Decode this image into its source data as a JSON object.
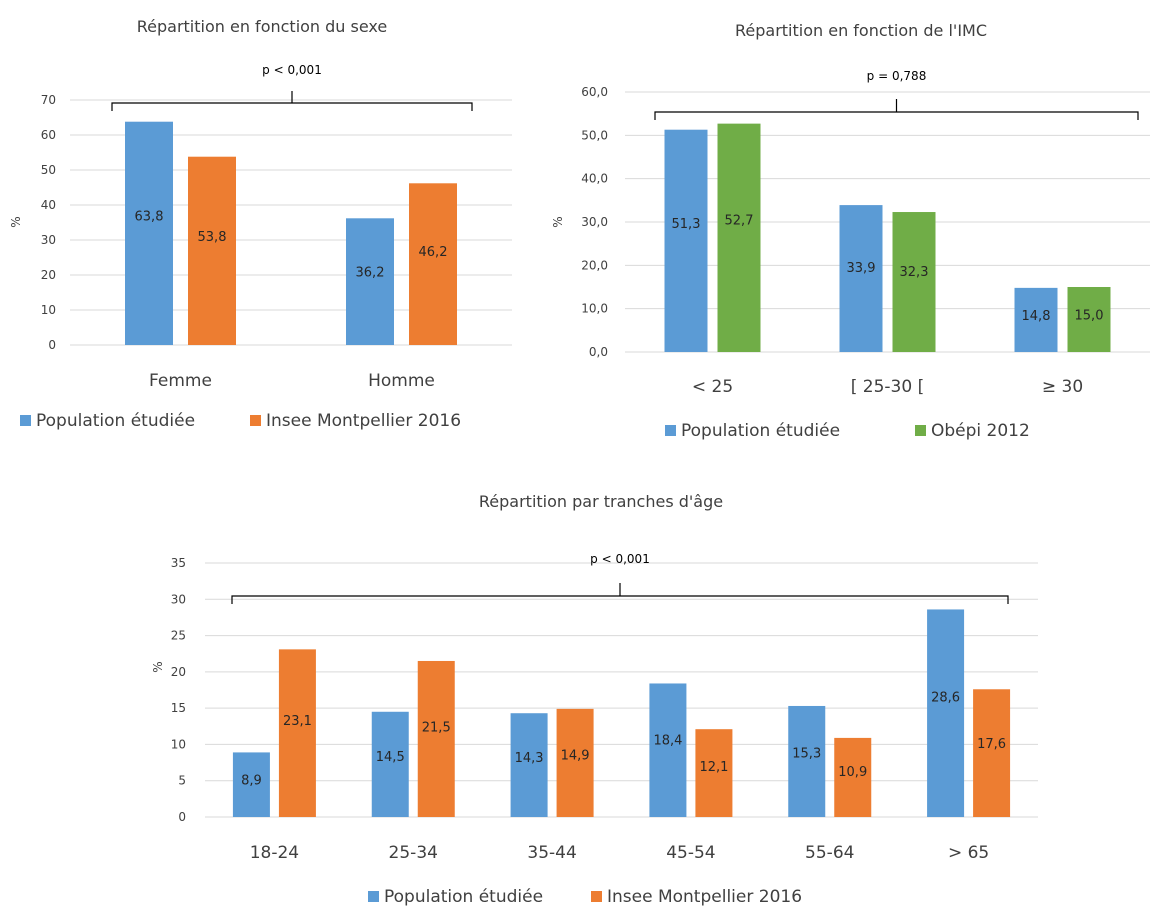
{
  "colors": {
    "population": "#5B9BD5",
    "insee": "#ED7D31",
    "obepi": "#70AD47",
    "grid": "#D9D9D9",
    "text": "#404040"
  },
  "chart_data": [
    {
      "type": "bar",
      "title": "Répartition en fonction du sexe",
      "ylabel": "%",
      "categories": [
        "Femme",
        "Homme"
      ],
      "ylim": [
        0,
        70
      ],
      "yticks": [
        "0",
        "10",
        "20",
        "30",
        "40",
        "50",
        "60",
        "70"
      ],
      "series": [
        {
          "name": "Population étudiée",
          "values": [
            63.8,
            36.2
          ],
          "labels": [
            "63,8",
            "36,2"
          ],
          "color": "#5B9BD5"
        },
        {
          "name": "Insee Montpellier 2016",
          "values": [
            53.8,
            46.2
          ],
          "labels": [
            "53,8",
            "46,2"
          ],
          "color": "#ED7D31"
        }
      ],
      "annotation": "p < 0,001",
      "grid": true,
      "legend": "bottom"
    },
    {
      "type": "bar",
      "title": "Répartition en fonction de l'IMC",
      "ylabel": "%",
      "categories": [
        "< 25",
        "[ 25-30 [",
        "≥ 30"
      ],
      "ylim": [
        0,
        60
      ],
      "yticks": [
        "0,0",
        "10,0",
        "20,0",
        "30,0",
        "40,0",
        "50,0",
        "60,0"
      ],
      "series": [
        {
          "name": "Population étudiée",
          "values": [
            51.3,
            33.9,
            14.8
          ],
          "labels": [
            "51,3",
            "33,9",
            "14,8"
          ],
          "color": "#5B9BD5"
        },
        {
          "name": "Obépi 2012",
          "values": [
            52.7,
            32.3,
            15.0
          ],
          "labels": [
            "52,7",
            "32,3",
            "15,0"
          ],
          "color": "#70AD47"
        }
      ],
      "annotation": "p = 0,788",
      "grid": true,
      "legend": "bottom"
    },
    {
      "type": "bar",
      "title": "Répartition par tranches d'âge",
      "ylabel": "%",
      "categories": [
        "18-24",
        "25-34",
        "35-44",
        "45-54",
        "55-64",
        "> 65"
      ],
      "ylim": [
        0,
        35
      ],
      "yticks": [
        "0",
        "5",
        "10",
        "15",
        "20",
        "25",
        "30",
        "35"
      ],
      "series": [
        {
          "name": "Population étudiée",
          "values": [
            8.9,
            14.5,
            14.3,
            18.4,
            15.3,
            28.6
          ],
          "labels": [
            "8,9",
            "14,5",
            "14,3",
            "18,4",
            "15,3",
            "28,6"
          ],
          "color": "#5B9BD5"
        },
        {
          "name": "Insee Montpellier 2016",
          "values": [
            23.1,
            21.5,
            14.9,
            12.1,
            10.9,
            17.6
          ],
          "labels": [
            "23,1",
            "21,5",
            "14,9",
            "12,1",
            "10,9",
            "17,6"
          ],
          "color": "#ED7D31"
        }
      ],
      "annotation": "p < 0,001",
      "grid": true,
      "legend": "bottom"
    }
  ]
}
